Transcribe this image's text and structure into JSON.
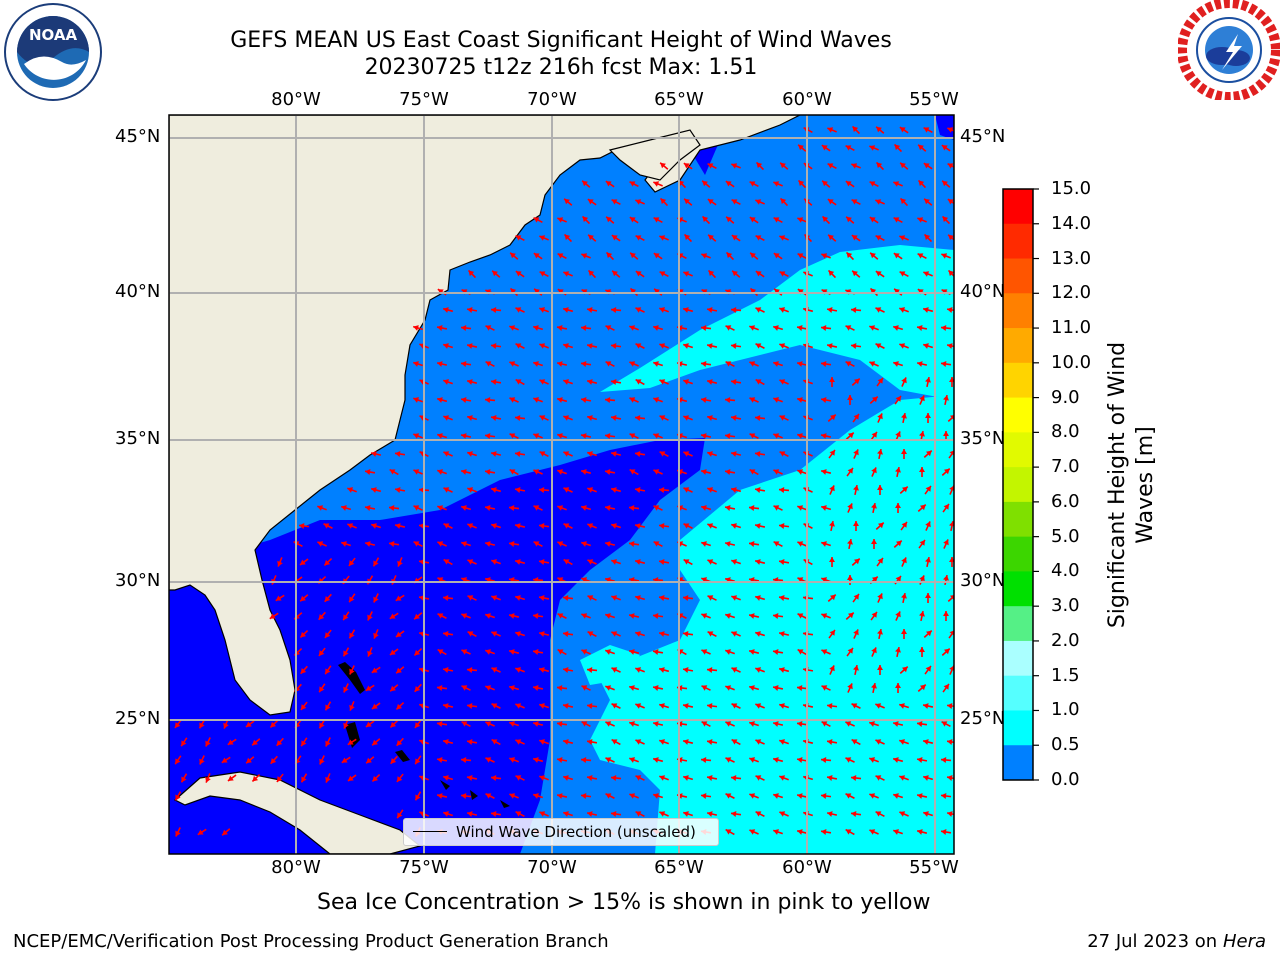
{
  "title": {
    "line1": "GEFS MEAN US East Coast Significant Height of Wind Waves",
    "line2": "20230725 t12z 216h fcst   Max: 1.51"
  },
  "logos": {
    "left": {
      "text": "NOAA",
      "ring_text": "NATIONAL OCEANIC AND ATMOSPHERIC ADMINISTRATION · U.S. DEPARTMENT OF COMMERCE"
    },
    "right": {
      "ring_text": "NATIONAL WEATHER SERVICE"
    }
  },
  "map": {
    "lon_labels": [
      "80°W",
      "75°W",
      "70°W",
      "65°W",
      "60°W",
      "55°W"
    ],
    "lat_labels": [
      "45°N",
      "40°N",
      "35°N",
      "30°N",
      "25°N"
    ],
    "land_color": "#efedde",
    "legend": "Wind Wave Direction (unscaled)",
    "arrow_color": "#ff0000"
  },
  "colorbar": {
    "label_line1": "Significant Height of Wind",
    "label_line2": "Waves [m]",
    "ticks": [
      "15.0",
      "14.0",
      "13.0",
      "12.0",
      "11.0",
      "10.0",
      "9.0",
      "8.0",
      "7.0",
      "6.0",
      "5.0",
      "4.0",
      "3.0",
      "2.0",
      "1.5",
      "1.0",
      "0.5",
      "0.0"
    ],
    "colors": [
      "#ff0000",
      "#ff2a00",
      "#ff5500",
      "#ff8000",
      "#ffaa00",
      "#ffd400",
      "#ffff00",
      "#e1fa00",
      "#c3f500",
      "#7fe000",
      "#3cd600",
      "#00e000",
      "#55f086",
      "#aaffff",
      "#55ffff",
      "#00ffff",
      "#0080ff",
      "#0000ff"
    ]
  },
  "ice_note": "Sea Ice Concentration > 15% is shown in pink to yellow",
  "footer": {
    "left": "NCEP/EMC/Verification Post Processing Product Generation Branch",
    "right_date": "27 Jul 2023 on ",
    "right_host": "Hera"
  }
}
